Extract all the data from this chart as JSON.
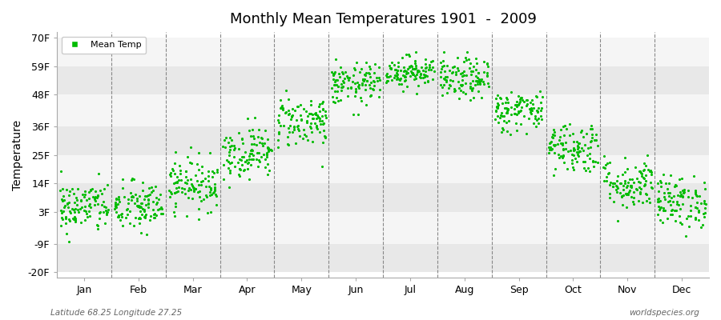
{
  "title": "Monthly Mean Temperatures 1901  -  2009",
  "ylabel": "Temperature",
  "dot_color": "#00BB00",
  "background_color": "#FFFFFF",
  "plot_bg_color": "#FFFFFF",
  "legend_label": "Mean Temp",
  "yticks": [
    -20,
    -9,
    3,
    14,
    25,
    36,
    48,
    59,
    70
  ],
  "ytick_labels": [
    "-20F",
    "-9F",
    "3F",
    "14F",
    "25F",
    "36F",
    "48F",
    "59F",
    "70F"
  ],
  "ylim": [
    -22,
    72
  ],
  "months": [
    "Jan",
    "Feb",
    "Mar",
    "Apr",
    "May",
    "Jun",
    "Jul",
    "Aug",
    "Sep",
    "Oct",
    "Nov",
    "Dec"
  ],
  "subtitle_left": "Latitude 68.25 Longitude 27.25",
  "subtitle_right": "worldspecies.org",
  "num_years": 109,
  "month_means_F": [
    5,
    5,
    14,
    26,
    38,
    52,
    57,
    54,
    42,
    28,
    14,
    7
  ],
  "month_stds_F": [
    5,
    5,
    5,
    5,
    5,
    4,
    3,
    4,
    4,
    5,
    5,
    5
  ],
  "band_colors": [
    "#E8E8E8",
    "#F5F5F5"
  ]
}
